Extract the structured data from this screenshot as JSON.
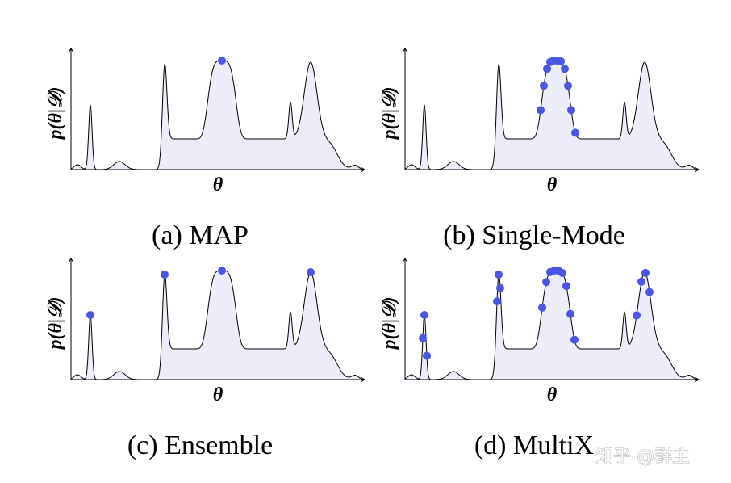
{
  "panels": [
    {
      "caption": "(a) MAP",
      "y_label": "p(θ|𝒟)",
      "x_label": "θ"
    },
    {
      "caption": "(b) Single-Mode",
      "y_label": "p(θ|𝒟)",
      "x_label": "θ"
    },
    {
      "caption": "(c) Ensemble",
      "y_label": "p(θ|𝒟)",
      "x_label": "θ"
    },
    {
      "caption": "(d) MultiX",
      "y_label": "p(θ|𝒟)",
      "x_label": "θ"
    }
  ],
  "watermark": "知乎 @群主"
}
